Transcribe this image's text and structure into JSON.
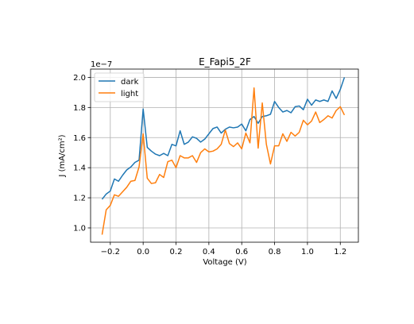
{
  "chart_data": {
    "type": "line",
    "title": "E_Fapi5_2F",
    "xlabel": "Voltage (V)",
    "ylabel": "J (mA/cm²)",
    "y_offset_text": "1e−7",
    "xlim": [
      -0.32,
      1.31
    ],
    "ylim": [
      0.905,
      2.055
    ],
    "x_ticks": [
      -0.2,
      0.0,
      0.2,
      0.4,
      0.6,
      0.8,
      1.0,
      1.2
    ],
    "x_tick_labels": [
      "−0.2",
      "0.0",
      "0.2",
      "0.4",
      "0.6",
      "0.8",
      "1.0",
      "1.2"
    ],
    "y_ticks": [
      1.0,
      1.2,
      1.4,
      1.6,
      1.8,
      2.0
    ],
    "y_tick_labels": [
      "1.0",
      "1.2",
      "1.4",
      "1.6",
      "1.8",
      "2.0"
    ],
    "grid": true,
    "legend_position": "top-left",
    "series": [
      {
        "name": "dark",
        "color": "#1f77b4",
        "x": [
          -0.25,
          -0.225,
          -0.2,
          -0.175,
          -0.15,
          -0.125,
          -0.1,
          -0.075,
          -0.05,
          -0.025,
          0.0,
          0.025,
          0.05,
          0.075,
          0.1,
          0.125,
          0.15,
          0.175,
          0.2,
          0.225,
          0.25,
          0.275,
          0.3,
          0.325,
          0.35,
          0.375,
          0.4,
          0.425,
          0.45,
          0.475,
          0.5,
          0.525,
          0.55,
          0.575,
          0.6,
          0.625,
          0.65,
          0.675,
          0.7,
          0.725,
          0.75,
          0.775,
          0.8,
          0.825,
          0.85,
          0.875,
          0.9,
          0.925,
          0.95,
          0.975,
          1.0,
          1.025,
          1.05,
          1.075,
          1.1,
          1.125,
          1.15,
          1.175,
          1.2,
          1.225
        ],
        "values": [
          1.19,
          1.225,
          1.245,
          1.325,
          1.31,
          1.35,
          1.385,
          1.405,
          1.435,
          1.45,
          1.79,
          1.535,
          1.51,
          1.49,
          1.48,
          1.495,
          1.48,
          1.555,
          1.545,
          1.645,
          1.555,
          1.57,
          1.605,
          1.595,
          1.57,
          1.59,
          1.625,
          1.66,
          1.67,
          1.63,
          1.655,
          1.67,
          1.665,
          1.67,
          1.69,
          1.645,
          1.72,
          1.74,
          1.695,
          1.74,
          1.745,
          1.755,
          1.84,
          1.8,
          1.77,
          1.78,
          1.765,
          1.805,
          1.81,
          1.785,
          1.855,
          1.815,
          1.85,
          1.84,
          1.85,
          1.84,
          1.91,
          1.86,
          1.92,
          2.0
        ]
      },
      {
        "name": "light",
        "color": "#ff7f0e",
        "x": [
          -0.25,
          -0.225,
          -0.2,
          -0.175,
          -0.15,
          -0.125,
          -0.1,
          -0.075,
          -0.05,
          -0.025,
          0.0,
          0.025,
          0.05,
          0.075,
          0.1,
          0.125,
          0.15,
          0.175,
          0.2,
          0.225,
          0.25,
          0.275,
          0.3,
          0.325,
          0.35,
          0.375,
          0.4,
          0.425,
          0.45,
          0.475,
          0.5,
          0.525,
          0.55,
          0.575,
          0.6,
          0.625,
          0.65,
          0.675,
          0.7,
          0.725,
          0.75,
          0.775,
          0.8,
          0.825,
          0.85,
          0.875,
          0.9,
          0.925,
          0.95,
          0.975,
          1.0,
          1.025,
          1.05,
          1.075,
          1.1,
          1.125,
          1.15,
          1.175,
          1.2,
          1.225
        ],
        "values": [
          0.955,
          1.12,
          1.15,
          1.22,
          1.21,
          1.24,
          1.27,
          1.31,
          1.315,
          1.405,
          1.625,
          1.33,
          1.295,
          1.3,
          1.355,
          1.335,
          1.44,
          1.45,
          1.4,
          1.48,
          1.465,
          1.465,
          1.48,
          1.435,
          1.5,
          1.525,
          1.505,
          1.51,
          1.525,
          1.555,
          1.65,
          1.56,
          1.54,
          1.565,
          1.525,
          1.63,
          1.565,
          1.93,
          1.53,
          1.83,
          1.555,
          1.425,
          1.545,
          1.545,
          1.625,
          1.575,
          1.635,
          1.61,
          1.635,
          1.715,
          1.685,
          1.71,
          1.77,
          1.7,
          1.72,
          1.745,
          1.73,
          1.78,
          1.805,
          1.75
        ]
      }
    ]
  }
}
